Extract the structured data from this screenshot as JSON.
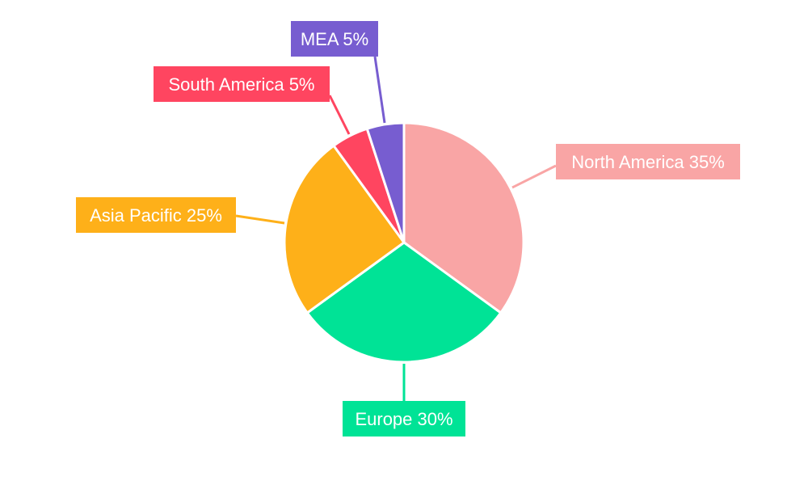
{
  "chart_data": {
    "type": "pie",
    "title": "",
    "start": "top",
    "direction": "clockwise",
    "categories": [
      "North America",
      "Europe",
      "Asia Pacific",
      "South America",
      "MEA"
    ],
    "values": [
      35,
      30,
      25,
      5,
      5
    ],
    "labels": [
      "North America 35%",
      "Europe 30%",
      "Asia Pacific 25%",
      "South America 5%",
      "MEA 5%"
    ],
    "colors": [
      "#F9A5A5",
      "#00E396",
      "#FEB019",
      "#FF4560",
      "#775DD0"
    ],
    "legend": "none"
  }
}
